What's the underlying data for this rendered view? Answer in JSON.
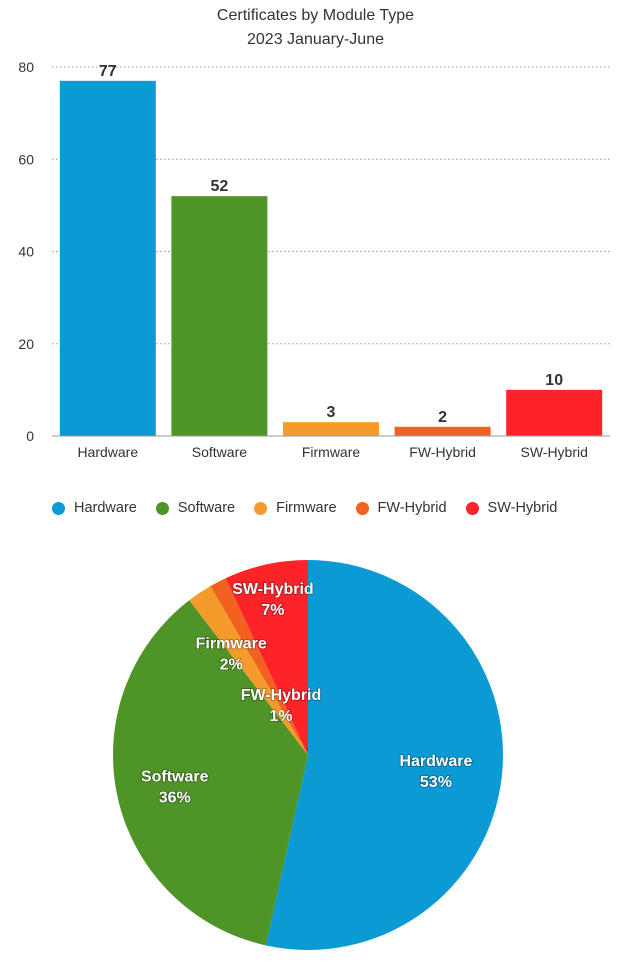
{
  "title": "Certificates by Module Type",
  "subtitle": "2023 January-June",
  "chart_data": [
    {
      "type": "bar",
      "categories": [
        "Hardware",
        "Software",
        "Firmware",
        "FW-Hybrid",
        "SW-Hybrid"
      ],
      "values": [
        77,
        52,
        3,
        2,
        10
      ],
      "data_labels": [
        "77",
        "52",
        "3",
        "2",
        "10"
      ],
      "colors": [
        "#0b9ad3",
        "#4f9427",
        "#f59b2b",
        "#f2611f",
        "#fd2329"
      ],
      "ylim": [
        0,
        80
      ],
      "yticks": [
        "0",
        "20",
        "40",
        "60",
        "80"
      ],
      "grid": true,
      "legend": "bottom"
    },
    {
      "type": "pie",
      "categories": [
        "Hardware",
        "Software",
        "Firmware",
        "FW-Hybrid",
        "SW-Hybrid"
      ],
      "values": [
        77,
        52,
        3,
        2,
        10
      ],
      "percent_labels": [
        "53%",
        "36%",
        "2%",
        "1%",
        "7%"
      ],
      "colors": [
        "#0b9ad3",
        "#4f9427",
        "#f59b2b",
        "#f2611f",
        "#fd2329"
      ]
    }
  ]
}
